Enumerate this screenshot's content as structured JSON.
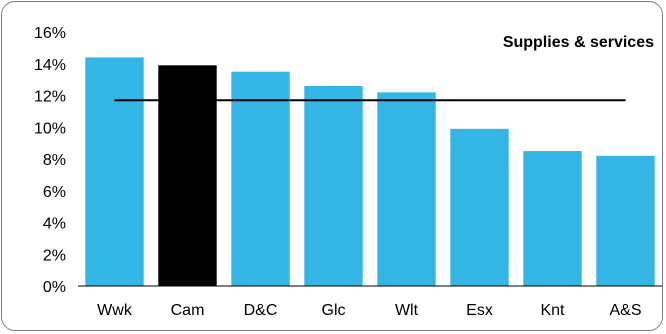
{
  "chart_data": {
    "type": "bar",
    "title": "Supplies & services",
    "xlabel": "",
    "ylabel": "",
    "categories": [
      "Wwk",
      "Cam",
      "D&C",
      "Glc",
      "Wlt",
      "Esx",
      "Knt",
      "A&S"
    ],
    "values": [
      14.4,
      13.9,
      13.5,
      12.6,
      12.2,
      9.9,
      8.5,
      8.2
    ],
    "highlight_category": "Cam",
    "reference_line": 11.7,
    "ylim": [
      0,
      16
    ],
    "yticks": [
      0,
      2,
      4,
      6,
      8,
      10,
      12,
      14,
      16
    ],
    "ytick_labels": [
      "0%",
      "2%",
      "4%",
      "6%",
      "8%",
      "10%",
      "12%",
      "14%",
      "16%"
    ],
    "grid": false,
    "legend": "none",
    "colors": {
      "bar": "#33b5e5",
      "highlight": "#000000",
      "reference": "#000000"
    }
  }
}
